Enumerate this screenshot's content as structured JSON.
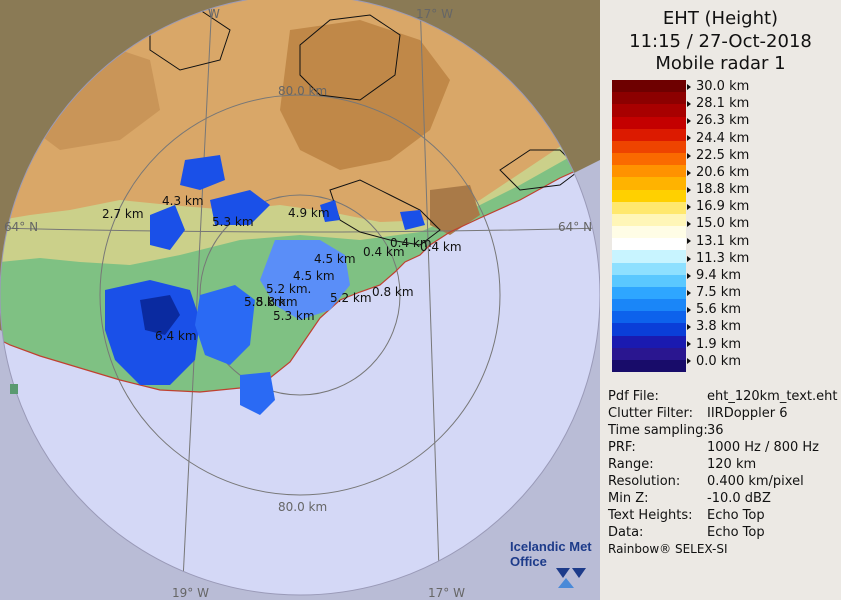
{
  "header": {
    "line1": "EHT (Height)",
    "line2": "11:15 / 27-Oct-2018",
    "line3": "Mobile radar 1"
  },
  "legend": {
    "unit_values": [
      "30.0 km",
      "28.1 km",
      "26.3 km",
      "24.4 km",
      "22.5 km",
      "20.6 km",
      "18.8 km",
      "16.9 km",
      "15.0 km",
      "13.1 km",
      "11.3 km",
      "9.4 km",
      "7.5 km",
      "5.6 km",
      "3.8 km",
      "1.9 km",
      "0.0 km"
    ],
    "colors": [
      "#6e0000",
      "#8c0000",
      "#a80000",
      "#c40000",
      "#dc1a00",
      "#ee4400",
      "#fa6a00",
      "#ff9200",
      "#ffb300",
      "#ffd000",
      "#ffe86e",
      "#fff6b8",
      "#fffde6",
      "#ffffff",
      "#c8f4ff",
      "#8ee0ff",
      "#5ac8ff",
      "#2ea6ff",
      "#1a86f8",
      "#0d62ec",
      "#0a3ed8",
      "#1a1ab0",
      "#2a1690",
      "#180c6a"
    ]
  },
  "metadata": [
    {
      "key": "Pdf File:",
      "value": "eht_120km_text.eht"
    },
    {
      "key": "Clutter Filter:",
      "value": "IIRDoppler 6"
    },
    {
      "key": "Time sampling:",
      "value": "36"
    },
    {
      "key": "PRF:",
      "value": "1000 Hz / 800 Hz"
    },
    {
      "key": "Range:",
      "value": "120 km"
    },
    {
      "key": "Resolution:",
      "value": "0.400 km/pixel"
    },
    {
      "key": "Min Z:",
      "value": "-10.0 dBZ"
    },
    {
      "key": "Text Heights:",
      "value": "Echo Top"
    },
    {
      "key": "Data:",
      "value": "Echo Top"
    }
  ],
  "footer": "Rainbow® SELEX-SI",
  "logo_text": [
    "Icelandic Met",
    "Office"
  ],
  "map": {
    "ring_labels": [
      "80.0 km",
      "80.0 km"
    ],
    "grid_labels": {
      "w_top_left": "W",
      "w_top_right": "17° W",
      "lat_left": "64° N",
      "lat_right": "64° N",
      "lon_bottom_left": "19° W",
      "lon_bottom_right": "17° W"
    },
    "echo_labels": [
      "2.7 km",
      "4.3 km",
      "5.3 km",
      "4.9 km",
      "0.4 km",
      "0.4 km",
      "0.4 km",
      "4.5 km",
      "4.5 km",
      "5.2 km.",
      "5.8 km",
      "5.8 km",
      "5.2 km",
      "0.8 km",
      "5.3 km",
      "6.4 km"
    ]
  }
}
